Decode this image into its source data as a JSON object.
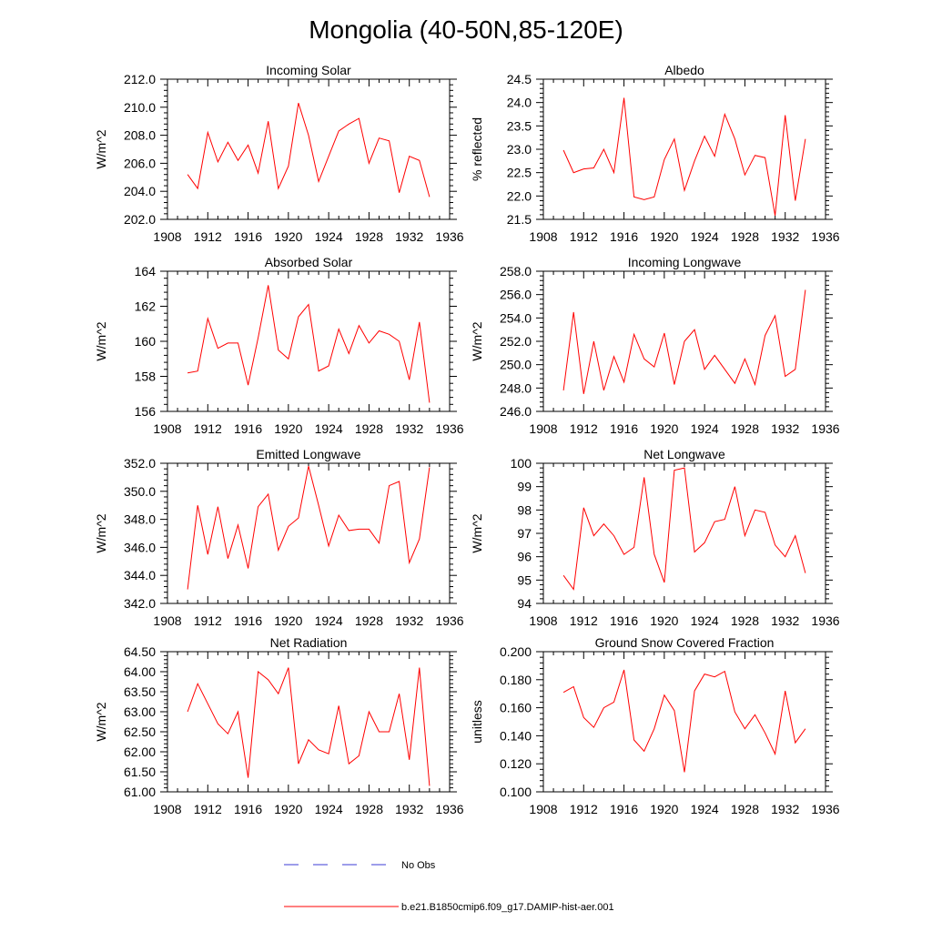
{
  "title": "Mongolia (40-50N,85-120E)",
  "legend": {
    "obs_label": "No Obs",
    "model_label": "b.e21.B1850cmip6.f09_g17.DAMIP-hist-aer.001",
    "obs_color": "#3b3bd6",
    "model_color": "#ff0000"
  },
  "chart_data": [
    {
      "type": "line",
      "title": "Incoming Solar",
      "ylabel": "W/m^2",
      "xlim": [
        1908,
        1936
      ],
      "ylim": [
        202,
        212
      ],
      "xticks": [
        1908,
        1912,
        1916,
        1920,
        1924,
        1928,
        1932,
        1936
      ],
      "yticks": [
        "202.0",
        "204.0",
        "206.0",
        "208.0",
        "210.0",
        "212.0"
      ],
      "x": [
        1910,
        1911,
        1912,
        1913,
        1914,
        1915,
        1916,
        1917,
        1918,
        1919,
        1920,
        1921,
        1922,
        1923,
        1924,
        1925,
        1926,
        1927,
        1928,
        1929,
        1930,
        1931,
        1932,
        1933,
        1934
      ],
      "series": [
        {
          "values": [
            205.2,
            204.2,
            208.2,
            206.1,
            207.5,
            206.2,
            207.3,
            205.3,
            209.0,
            204.2,
            205.8,
            210.3,
            208.0,
            204.7,
            206.5,
            208.3,
            208.8,
            209.2,
            206.0,
            207.8,
            207.6,
            203.9,
            206.5,
            206.2,
            203.6
          ]
        }
      ]
    },
    {
      "type": "line",
      "title": "Albedo",
      "ylabel": "% reflected",
      "xlim": [
        1908,
        1936
      ],
      "ylim": [
        21.5,
        24.5
      ],
      "xticks": [
        1908,
        1912,
        1916,
        1920,
        1924,
        1928,
        1932,
        1936
      ],
      "yticks": [
        "21.5",
        "22.0",
        "22.5",
        "23.0",
        "23.5",
        "24.0",
        "24.5"
      ],
      "x": [
        1910,
        1911,
        1912,
        1913,
        1914,
        1915,
        1916,
        1917,
        1918,
        1919,
        1920,
        1921,
        1922,
        1923,
        1924,
        1925,
        1926,
        1927,
        1928,
        1929,
        1930,
        1931,
        1932,
        1933,
        1934
      ],
      "series": [
        {
          "values": [
            22.98,
            22.5,
            22.58,
            22.6,
            23.0,
            22.5,
            24.1,
            21.98,
            21.92,
            21.98,
            22.78,
            23.22,
            22.12,
            22.75,
            23.28,
            22.85,
            23.75,
            23.22,
            22.45,
            22.87,
            22.82,
            21.58,
            23.73,
            21.9,
            23.22
          ]
        }
      ]
    },
    {
      "type": "line",
      "title": "Absorbed Solar",
      "ylabel": "W/m^2",
      "xlim": [
        1908,
        1936
      ],
      "ylim": [
        156,
        164
      ],
      "xticks": [
        1908,
        1912,
        1916,
        1920,
        1924,
        1928,
        1932,
        1936
      ],
      "yticks": [
        "156",
        "158",
        "160",
        "162",
        "164"
      ],
      "x": [
        1910,
        1911,
        1912,
        1913,
        1914,
        1915,
        1916,
        1917,
        1918,
        1919,
        1920,
        1921,
        1922,
        1923,
        1924,
        1925,
        1926,
        1927,
        1928,
        1929,
        1930,
        1931,
        1932,
        1933,
        1934
      ],
      "series": [
        {
          "values": [
            158.2,
            158.3,
            161.3,
            159.6,
            159.9,
            159.9,
            157.5,
            160.2,
            163.2,
            159.5,
            159.0,
            161.4,
            162.1,
            158.3,
            158.6,
            160.7,
            159.3,
            160.9,
            159.9,
            160.6,
            160.4,
            160.0,
            157.8,
            161.1,
            156.5
          ]
        }
      ]
    },
    {
      "type": "line",
      "title": "Incoming Longwave",
      "ylabel": "W/m^2",
      "xlim": [
        1908,
        1936
      ],
      "ylim": [
        246,
        258
      ],
      "xticks": [
        1908,
        1912,
        1916,
        1920,
        1924,
        1928,
        1932,
        1936
      ],
      "yticks": [
        "246.0",
        "248.0",
        "250.0",
        "252.0",
        "254.0",
        "256.0",
        "258.0"
      ],
      "x": [
        1910,
        1911,
        1912,
        1913,
        1914,
        1915,
        1916,
        1917,
        1918,
        1919,
        1920,
        1921,
        1922,
        1923,
        1924,
        1925,
        1926,
        1927,
        1928,
        1929,
        1930,
        1931,
        1932,
        1933,
        1934
      ],
      "series": [
        {
          "values": [
            247.8,
            254.5,
            247.5,
            252.0,
            247.8,
            250.7,
            248.5,
            252.6,
            250.5,
            249.8,
            252.7,
            248.3,
            252.0,
            253.0,
            249.6,
            250.8,
            249.6,
            248.4,
            250.5,
            248.3,
            252.5,
            254.2,
            249.0,
            249.6,
            256.4
          ]
        }
      ]
    },
    {
      "type": "line",
      "title": "Emitted Longwave",
      "ylabel": "W/m^2",
      "xlim": [
        1908,
        1936
      ],
      "ylim": [
        342,
        352
      ],
      "xticks": [
        1908,
        1912,
        1916,
        1920,
        1924,
        1928,
        1932,
        1936
      ],
      "yticks": [
        "342.0",
        "344.0",
        "346.0",
        "348.0",
        "350.0",
        "352.0"
      ],
      "x": [
        1910,
        1911,
        1912,
        1913,
        1914,
        1915,
        1916,
        1917,
        1918,
        1919,
        1920,
        1921,
        1922,
        1923,
        1924,
        1925,
        1926,
        1927,
        1928,
        1929,
        1930,
        1931,
        1932,
        1933,
        1934
      ],
      "series": [
        {
          "values": [
            343.0,
            349.0,
            345.5,
            348.9,
            345.2,
            347.6,
            344.5,
            348.9,
            349.8,
            345.8,
            347.5,
            348.1,
            351.8,
            349.0,
            346.1,
            348.3,
            347.2,
            347.3,
            347.3,
            346.3,
            350.4,
            350.7,
            344.9,
            346.6,
            351.7
          ]
        }
      ]
    },
    {
      "type": "line",
      "title": "Net Longwave",
      "ylabel": "W/m^2",
      "xlim": [
        1908,
        1936
      ],
      "ylim": [
        94,
        100
      ],
      "xticks": [
        1908,
        1912,
        1916,
        1920,
        1924,
        1928,
        1932,
        1936
      ],
      "yticks": [
        "94",
        "95",
        "96",
        "97",
        "98",
        "99",
        "100"
      ],
      "x": [
        1910,
        1911,
        1912,
        1913,
        1914,
        1915,
        1916,
        1917,
        1918,
        1919,
        1920,
        1921,
        1922,
        1923,
        1924,
        1925,
        1926,
        1927,
        1928,
        1929,
        1930,
        1931,
        1932,
        1933,
        1934
      ],
      "series": [
        {
          "values": [
            95.2,
            94.6,
            98.1,
            96.9,
            97.4,
            96.9,
            96.1,
            96.4,
            99.4,
            96.1,
            94.9,
            99.7,
            99.8,
            96.2,
            96.6,
            97.5,
            97.6,
            99.0,
            96.9,
            98.0,
            97.9,
            96.5,
            96.0,
            96.9,
            95.3
          ]
        }
      ]
    },
    {
      "type": "line",
      "title": "Net Radiation",
      "ylabel": "W/m^2",
      "xlim": [
        1908,
        1936
      ],
      "ylim": [
        61,
        64.5
      ],
      "xticks": [
        1908,
        1912,
        1916,
        1920,
        1924,
        1928,
        1932,
        1936
      ],
      "yticks": [
        "61.00",
        "61.50",
        "62.00",
        "62.50",
        "63.00",
        "63.50",
        "64.00",
        "64.50"
      ],
      "x": [
        1910,
        1911,
        1912,
        1913,
        1914,
        1915,
        1916,
        1917,
        1918,
        1919,
        1920,
        1921,
        1922,
        1923,
        1924,
        1925,
        1926,
        1927,
        1928,
        1929,
        1930,
        1931,
        1932,
        1933,
        1934
      ],
      "series": [
        {
          "values": [
            63.0,
            63.7,
            63.2,
            62.7,
            62.45,
            63.0,
            61.35,
            64.0,
            63.8,
            63.45,
            64.1,
            61.7,
            62.3,
            62.05,
            61.95,
            63.15,
            61.7,
            61.9,
            63.0,
            62.5,
            62.5,
            63.45,
            61.8,
            64.1,
            61.15
          ]
        }
      ]
    },
    {
      "type": "line",
      "title": "Ground Snow Covered Fraction",
      "ylabel": "unitless",
      "xlim": [
        1908,
        1936
      ],
      "ylim": [
        0.1,
        0.2
      ],
      "xticks": [
        1908,
        1912,
        1916,
        1920,
        1924,
        1928,
        1932,
        1936
      ],
      "yticks": [
        "0.100",
        "0.120",
        "0.140",
        "0.160",
        "0.180",
        "0.200"
      ],
      "x": [
        1910,
        1911,
        1912,
        1913,
        1914,
        1915,
        1916,
        1917,
        1918,
        1919,
        1920,
        1921,
        1922,
        1923,
        1924,
        1925,
        1926,
        1927,
        1928,
        1929,
        1930,
        1931,
        1932,
        1933,
        1934
      ],
      "series": [
        {
          "values": [
            0.171,
            0.175,
            0.153,
            0.146,
            0.16,
            0.164,
            0.187,
            0.137,
            0.129,
            0.145,
            0.169,
            0.158,
            0.114,
            0.172,
            0.184,
            0.182,
            0.186,
            0.157,
            0.145,
            0.155,
            0.142,
            0.127,
            0.172,
            0.135,
            0.145
          ]
        }
      ]
    }
  ]
}
